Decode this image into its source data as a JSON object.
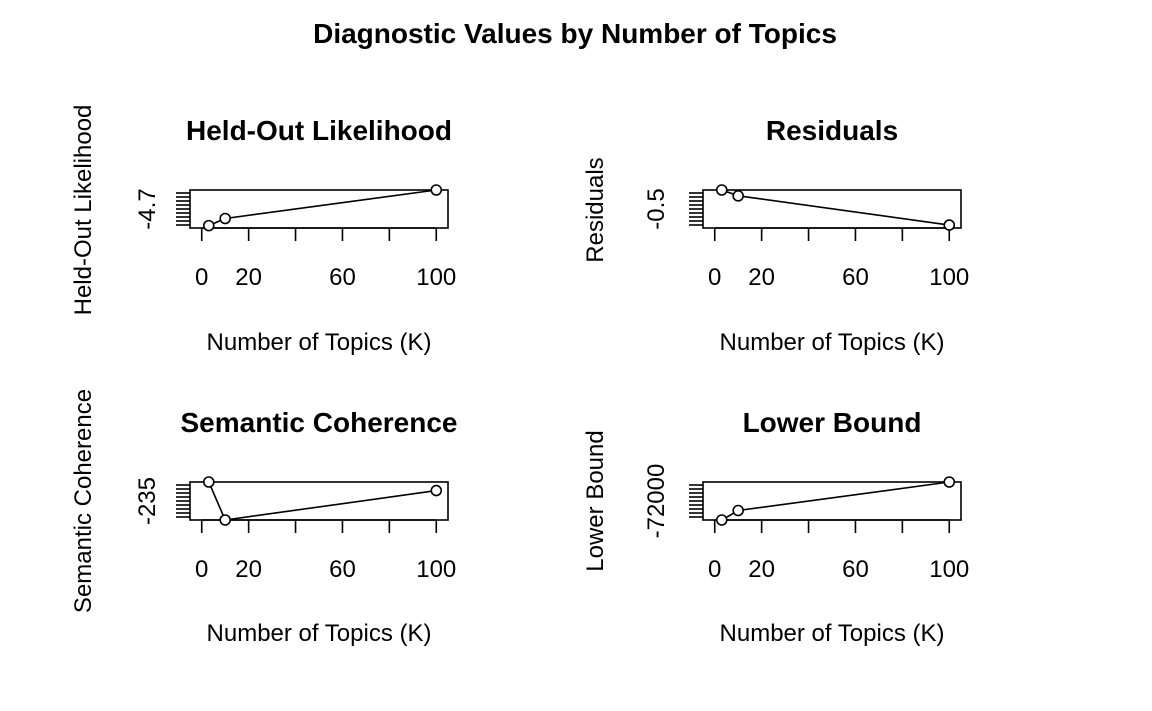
{
  "title": "Diagnostic Values by Number of Topics",
  "chart_data": [
    {
      "type": "line",
      "title": "Held-Out Likelihood",
      "xlabel": "Number of Topics (K)",
      "ylabel": "Held-Out Likelihood",
      "x_ticks": [
        0,
        20,
        60,
        100
      ],
      "y_tick_label": "-4.7",
      "xlim": [
        -5,
        105
      ],
      "ylim": [
        -4.76,
        -4.6
      ],
      "grid": false,
      "series": [
        {
          "x": [
            3,
            10,
            100
          ],
          "y": [
            -4.75,
            -4.72,
            -4.6
          ]
        }
      ]
    },
    {
      "type": "line",
      "title": "Residuals",
      "xlabel": "Number of Topics (K)",
      "ylabel": "Residuals",
      "x_ticks": [
        0,
        20,
        60,
        100
      ],
      "y_tick_label": "-0.5",
      "xlim": [
        -5,
        105
      ],
      "ylim": [
        -0.56,
        -0.43
      ],
      "grid": false,
      "series": [
        {
          "x": [
            3,
            10,
            100
          ],
          "y": [
            -0.43,
            -0.45,
            -0.55
          ]
        }
      ]
    },
    {
      "type": "line",
      "title": "Semantic Coherence",
      "xlabel": "Number of Topics (K)",
      "ylabel": "Semantic Coherence",
      "x_ticks": [
        0,
        20,
        60,
        100
      ],
      "y_tick_label": "-235",
      "xlim": [
        -5,
        105
      ],
      "ylim": [
        -240,
        -200
      ],
      "grid": false,
      "series": [
        {
          "x": [
            3,
            10,
            100
          ],
          "y": [
            -200,
            -240,
            -209
          ]
        }
      ]
    },
    {
      "type": "line",
      "title": "Lower Bound",
      "xlabel": "Number of Topics (K)",
      "ylabel": "Lower Bound",
      "x_ticks": [
        0,
        20,
        60,
        100
      ],
      "y_tick_label": "-72000",
      "xlim": [
        -5,
        105
      ],
      "ylim": [
        -72800,
        -71200
      ],
      "grid": false,
      "series": [
        {
          "x": [
            3,
            10,
            100
          ],
          "y": [
            -72800,
            -72400,
            -71200
          ]
        }
      ]
    }
  ]
}
